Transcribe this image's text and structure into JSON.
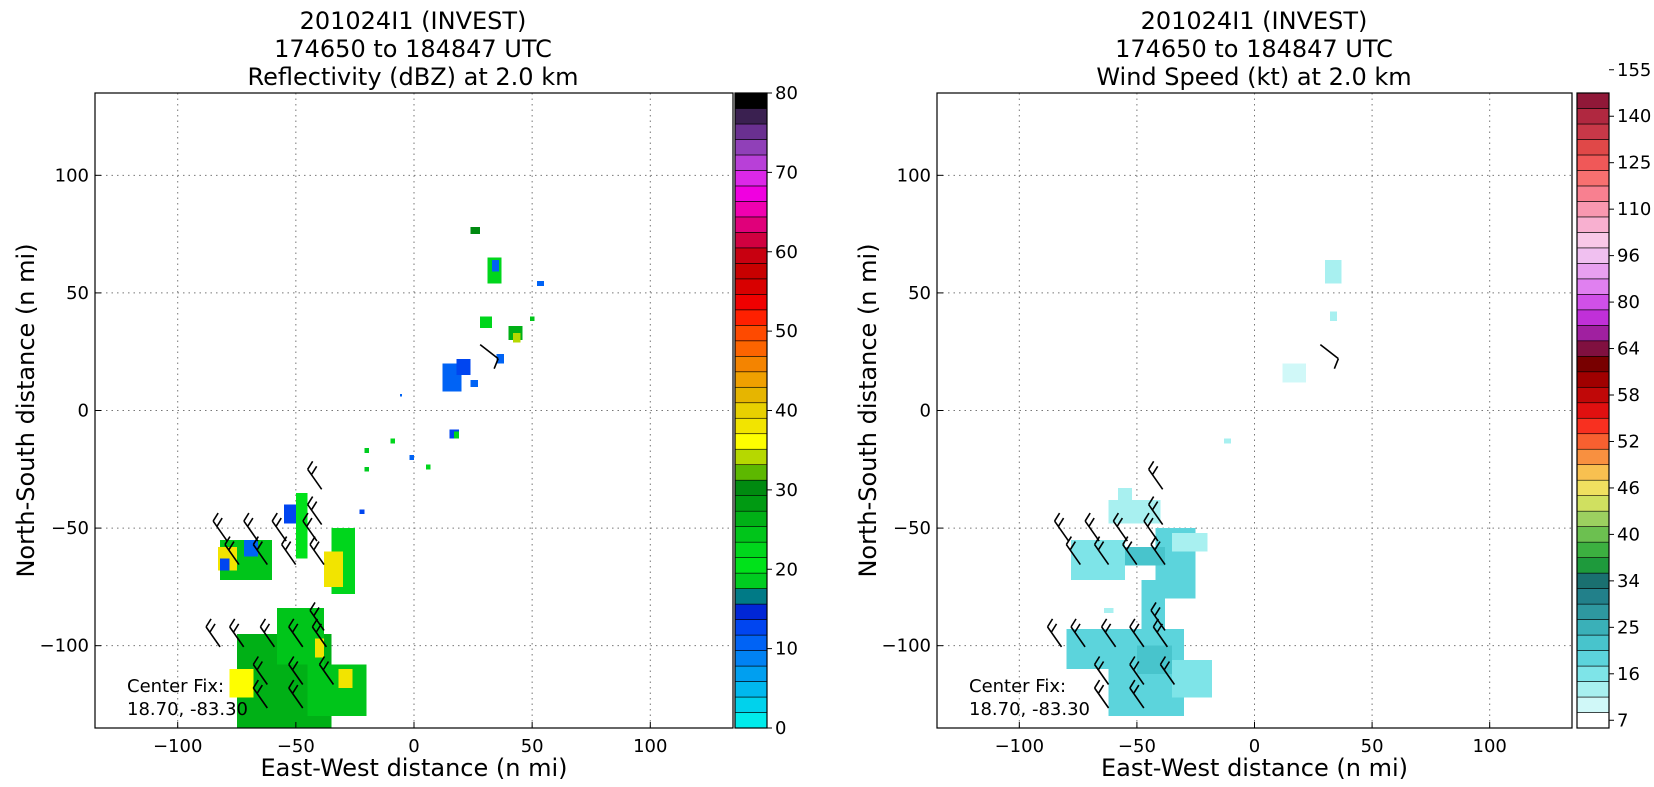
{
  "chart_data": [
    {
      "type": "heatmap",
      "title_lines": [
        "201024I1 (INVEST)",
        "174650 to 184847 UTC",
        "Reflectivity (dBZ) at 2.0 km"
      ],
      "xlabel": "East-West distance (n mi)",
      "ylabel": "North-South distance (n mi)",
      "xlim": [
        -135,
        135
      ],
      "ylim": [
        -135,
        135
      ],
      "xticks": [
        -100,
        -50,
        0,
        50,
        100
      ],
      "yticks": [
        -100,
        -50,
        0,
        50,
        100
      ],
      "xtick_labels": [
        "−100",
        "−50",
        "0",
        "50",
        "100"
      ],
      "ytick_labels": [
        "−100",
        "−50",
        "0",
        "50",
        "100"
      ],
      "grid": true,
      "annotation": [
        "Center Fix:",
        "18.70, -83.30"
      ],
      "colorbar": {
        "vmin": 0,
        "vmax": 80,
        "tick_values": [
          0,
          10,
          20,
          30,
          40,
          50,
          60,
          70,
          80
        ],
        "tick_labels": [
          "0",
          "10",
          "20",
          "30",
          "40",
          "50",
          "60",
          "70",
          "80"
        ],
        "colors": [
          "#00ebeb",
          "#00d2ec",
          "#00b8ee",
          "#009ff0",
          "#0082f3",
          "#0063f5",
          "#0045f0",
          "#0026d6",
          "#007a86",
          "#00cc20",
          "#00e21a",
          "#00d61c",
          "#00c51a",
          "#00b016",
          "#009a12",
          "#008a10",
          "#5db800",
          "#b6d800",
          "#fefe00",
          "#f2e400",
          "#e8d000",
          "#e6b500",
          "#f0a000",
          "#f48400",
          "#fc6400",
          "#fe4a00",
          "#fe2000",
          "#f00000",
          "#d80000",
          "#c80000",
          "#c80010",
          "#d00040",
          "#e0007a",
          "#f000b0",
          "#f000e0",
          "#dc28e8",
          "#b840d8",
          "#9040b8",
          "#6a3090",
          "#3a2050",
          "#000000"
        ]
      },
      "echo_regions": [
        {
          "x": [
            -50,
            -45
          ],
          "y": [
            -63,
            -35
          ],
          "value": 20
        },
        {
          "x": [
            -35,
            -25
          ],
          "y": [
            -78,
            -50
          ],
          "value": 22
        },
        {
          "x": [
            -82,
            -60
          ],
          "y": [
            -72,
            -55
          ],
          "value": 24
        },
        {
          "x": [
            -75,
            -35
          ],
          "y": [
            -135,
            -95
          ],
          "value": 26
        },
        {
          "x": [
            -58,
            -38
          ],
          "y": [
            -108,
            -84
          ],
          "value": 24
        },
        {
          "x": [
            -45,
            -20
          ],
          "y": [
            -130,
            -108
          ],
          "value": 24
        },
        {
          "x": [
            -83,
            -75
          ],
          "y": [
            -68,
            -58
          ],
          "value": 38
        },
        {
          "x": [
            -38,
            -30
          ],
          "y": [
            -75,
            -60
          ],
          "value": 38
        },
        {
          "x": [
            -42,
            -38
          ],
          "y": [
            -105,
            -97
          ],
          "value": 38
        },
        {
          "x": [
            -78,
            -68
          ],
          "y": [
            -122,
            -110
          ],
          "value": 36
        },
        {
          "x": [
            -32,
            -26
          ],
          "y": [
            -118,
            -110
          ],
          "value": 38
        },
        {
          "x": [
            -55,
            -50
          ],
          "y": [
            -48,
            -40
          ],
          "value": 12
        },
        {
          "x": [
            -72,
            -66
          ],
          "y": [
            -62,
            -55
          ],
          "value": 10
        },
        {
          "x": [
            -82,
            -78
          ],
          "y": [
            -68,
            -63
          ],
          "value": 12
        },
        {
          "x": [
            31,
            37
          ],
          "y": [
            54,
            65
          ],
          "value": 22
        },
        {
          "x": [
            33,
            36
          ],
          "y": [
            59,
            64
          ],
          "value": 10
        },
        {
          "x": [
            24,
            28
          ],
          "y": [
            75,
            78
          ],
          "value": 30
        },
        {
          "x": [
            52,
            55
          ],
          "y": [
            53,
            55
          ],
          "value": 10
        },
        {
          "x": [
            28,
            33
          ],
          "y": [
            35,
            40
          ],
          "value": 22
        },
        {
          "x": [
            40,
            46
          ],
          "y": [
            30,
            36
          ],
          "value": 26
        },
        {
          "x": [
            42,
            45
          ],
          "y": [
            29,
            33
          ],
          "value": 34
        },
        {
          "x": [
            49,
            51
          ],
          "y": [
            38,
            40
          ],
          "value": 24
        },
        {
          "x": [
            12,
            20
          ],
          "y": [
            8,
            20
          ],
          "value": 10
        },
        {
          "x": [
            18,
            24
          ],
          "y": [
            15,
            22
          ],
          "value": 12
        },
        {
          "x": [
            35,
            38
          ],
          "y": [
            20,
            24
          ],
          "value": 10
        },
        {
          "x": [
            24,
            27
          ],
          "y": [
            10,
            13
          ],
          "value": 10
        },
        {
          "x": [
            15,
            19
          ],
          "y": [
            -12,
            -8
          ],
          "value": 12
        },
        {
          "x": [
            17,
            19
          ],
          "y": [
            -12,
            -9
          ],
          "value": 22
        },
        {
          "x": [
            -10,
            -8
          ],
          "y": [
            -14,
            -12
          ],
          "value": 22
        },
        {
          "x": [
            -2,
            0
          ],
          "y": [
            -21,
            -19
          ],
          "value": 10
        },
        {
          "x": [
            5,
            7
          ],
          "y": [
            -25,
            -23
          ],
          "value": 22
        },
        {
          "x": [
            -21,
            -19
          ],
          "y": [
            -26,
            -24
          ],
          "value": 18
        },
        {
          "x": [
            -21,
            -19
          ],
          "y": [
            -18,
            -16
          ],
          "value": 18
        },
        {
          "x": [
            -23,
            -21
          ],
          "y": [
            -44,
            -42
          ],
          "value": 12
        },
        {
          "x": [
            -6,
            -5
          ],
          "y": [
            6,
            7
          ],
          "value": 10
        }
      ],
      "wind_barbs": [
        {
          "x": -45,
          "y": -25
        },
        {
          "x": -45,
          "y": -40
        },
        {
          "x": -85,
          "y": -47
        },
        {
          "x": -72,
          "y": -47
        },
        {
          "x": -60,
          "y": -47
        },
        {
          "x": -47,
          "y": -47
        },
        {
          "x": -80,
          "y": -57
        },
        {
          "x": -68,
          "y": -57
        },
        {
          "x": -56,
          "y": -57
        },
        {
          "x": -44,
          "y": -57
        },
        {
          "x": -44,
          "y": -85
        },
        {
          "x": -88,
          "y": -92
        },
        {
          "x": -78,
          "y": -92
        },
        {
          "x": -65,
          "y": -92
        },
        {
          "x": -53,
          "y": -92
        },
        {
          "x": -43,
          "y": -92
        },
        {
          "x": -68,
          "y": -108
        },
        {
          "x": -53,
          "y": -108
        },
        {
          "x": -40,
          "y": -108
        },
        {
          "x": -68,
          "y": -118
        },
        {
          "x": -53,
          "y": -118
        },
        {
          "x": 28,
          "y": 28
        }
      ]
    },
    {
      "type": "heatmap",
      "title_lines": [
        "201024I1 (INVEST)",
        "174650 to 184847 UTC",
        "Wind Speed (kt) at 2.0 km"
      ],
      "xlabel": "East-West distance (n mi)",
      "ylabel": "North-South distance (n mi)",
      "xlim": [
        -135,
        135
      ],
      "ylim": [
        -135,
        135
      ],
      "xticks": [
        -100,
        -50,
        0,
        50,
        100
      ],
      "yticks": [
        -100,
        -50,
        0,
        50,
        100
      ],
      "xtick_labels": [
        "−100",
        "−50",
        "0",
        "50",
        "100"
      ],
      "ytick_labels": [
        "−100",
        "−50",
        "0",
        "50",
        "100"
      ],
      "grid": true,
      "annotation": [
        "Center Fix:",
        "18.70, -83.30"
      ],
      "colorbar": {
        "tick_labels": [
          "7",
          "16",
          "25",
          "34",
          "40",
          "46",
          "52",
          "58",
          "64",
          "80",
          "96",
          "110",
          "125",
          "140",
          "155"
        ],
        "colors": [
          "#ffffff",
          "#d0f8f8",
          "#a8f0f0",
          "#7ee4e8",
          "#5cd4dc",
          "#48c4cc",
          "#3ab0b8",
          "#2e98a0",
          "#22808a",
          "#1a7070",
          "#1e9a3c",
          "#3cb040",
          "#6cc050",
          "#9cd060",
          "#d0e060",
          "#f0e060",
          "#f8c050",
          "#f89040",
          "#f86030",
          "#f83020",
          "#e01010",
          "#c00808",
          "#a00000",
          "#780000",
          "#801040",
          "#a020a0",
          "#c030d8",
          "#d050e8",
          "#e080f0",
          "#e8a0f0",
          "#f0c0f0",
          "#f8c8e8",
          "#f8b0d0",
          "#f898b0",
          "#f88090",
          "#f87070",
          "#f05858",
          "#e04848",
          "#c83848",
          "#b02840",
          "#901838"
        ]
      },
      "wind_regions": [
        {
          "x": [
            -58,
            -52
          ],
          "y": [
            -38,
            -33
          ],
          "value": 14
        },
        {
          "x": [
            -62,
            -40
          ],
          "y": [
            -48,
            -38
          ],
          "value": 14
        },
        {
          "x": [
            -78,
            -55
          ],
          "y": [
            -72,
            -55
          ],
          "value": 18
        },
        {
          "x": [
            -42,
            -25
          ],
          "y": [
            -80,
            -50
          ],
          "value": 22
        },
        {
          "x": [
            -35,
            -20
          ],
          "y": [
            -60,
            -52
          ],
          "value": 10
        },
        {
          "x": [
            -48,
            -38
          ],
          "y": [
            -100,
            -72
          ],
          "value": 22
        },
        {
          "x": [
            -80,
            -60
          ],
          "y": [
            -110,
            -93
          ],
          "value": 20
        },
        {
          "x": [
            -62,
            -30
          ],
          "y": [
            -130,
            -93
          ],
          "value": 22
        },
        {
          "x": [
            -50,
            -35
          ],
          "y": [
            -112,
            -100
          ],
          "value": 28
        },
        {
          "x": [
            -35,
            -18
          ],
          "y": [
            -122,
            -106
          ],
          "value": 18
        },
        {
          "x": [
            -55,
            -38
          ],
          "y": [
            -66,
            -58
          ],
          "value": 28
        },
        {
          "x": [
            30,
            37
          ],
          "y": [
            54,
            64
          ],
          "value": 14
        },
        {
          "x": [
            32,
            35
          ],
          "y": [
            38,
            42
          ],
          "value": 10
        },
        {
          "x": [
            12,
            22
          ],
          "y": [
            12,
            20
          ],
          "value": 8
        },
        {
          "x": [
            -13,
            -10
          ],
          "y": [
            -14,
            -12
          ],
          "value": 12
        },
        {
          "x": [
            -64,
            -60
          ],
          "y": [
            -86,
            -84
          ],
          "value": 12
        }
      ],
      "wind_barbs": [
        {
          "x": -45,
          "y": -25
        },
        {
          "x": -45,
          "y": -40
        },
        {
          "x": -85,
          "y": -47
        },
        {
          "x": -72,
          "y": -47
        },
        {
          "x": -60,
          "y": -47
        },
        {
          "x": -47,
          "y": -47
        },
        {
          "x": -80,
          "y": -57
        },
        {
          "x": -68,
          "y": -57
        },
        {
          "x": -56,
          "y": -57
        },
        {
          "x": -44,
          "y": -57
        },
        {
          "x": -44,
          "y": -85
        },
        {
          "x": -88,
          "y": -92
        },
        {
          "x": -78,
          "y": -92
        },
        {
          "x": -65,
          "y": -92
        },
        {
          "x": -53,
          "y": -92
        },
        {
          "x": -43,
          "y": -92
        },
        {
          "x": -68,
          "y": -108
        },
        {
          "x": -53,
          "y": -108
        },
        {
          "x": -40,
          "y": -108
        },
        {
          "x": -68,
          "y": -118
        },
        {
          "x": -53,
          "y": -118
        },
        {
          "x": 28,
          "y": 28
        }
      ]
    }
  ]
}
